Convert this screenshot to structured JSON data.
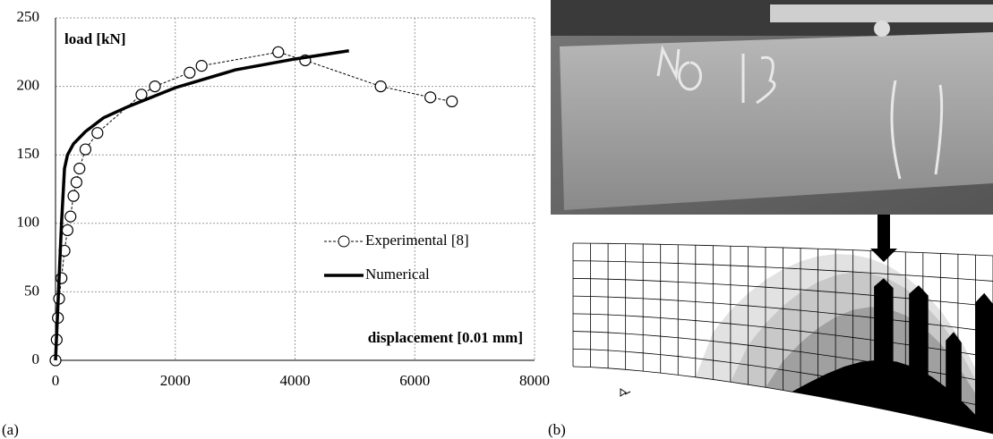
{
  "panels": [
    "(a)",
    "(b)"
  ],
  "chart_data": {
    "type": "line",
    "ylabel": "load [kN]",
    "xlabel": "displacement [0.01 mm]",
    "xlim": [
      0,
      8000
    ],
    "xticks": [
      0,
      2000,
      4000,
      6000,
      8000
    ],
    "ylim": [
      0,
      250
    ],
    "yticks": [
      0,
      50,
      100,
      150,
      200,
      250
    ],
    "grid": true,
    "legend": "right",
    "series": [
      {
        "name": "Experimental [8]",
        "color": "#000",
        "style": "dashed-circles",
        "x": [
          0,
          20,
          40,
          60,
          100,
          150,
          200,
          250,
          300,
          350,
          400,
          500,
          700,
          1435,
          1660,
          2240,
          2440,
          3720,
          4170,
          5430,
          6260,
          6620
        ],
        "values": [
          0,
          15,
          31,
          45,
          60,
          80,
          95,
          105,
          120,
          130,
          140,
          154,
          166,
          194,
          200,
          210,
          215,
          225,
          219,
          200,
          192,
          189
        ]
      },
      {
        "name": "Numerical",
        "color": "#000",
        "style": "solid-thick",
        "x": [
          0,
          50,
          100,
          150,
          200,
          300,
          500,
          800,
          1200,
          2000,
          3000,
          4000,
          4900
        ],
        "values": [
          0,
          50,
          100,
          140,
          150,
          158,
          167,
          177,
          185,
          199,
          212,
          220,
          226
        ]
      }
    ]
  }
}
